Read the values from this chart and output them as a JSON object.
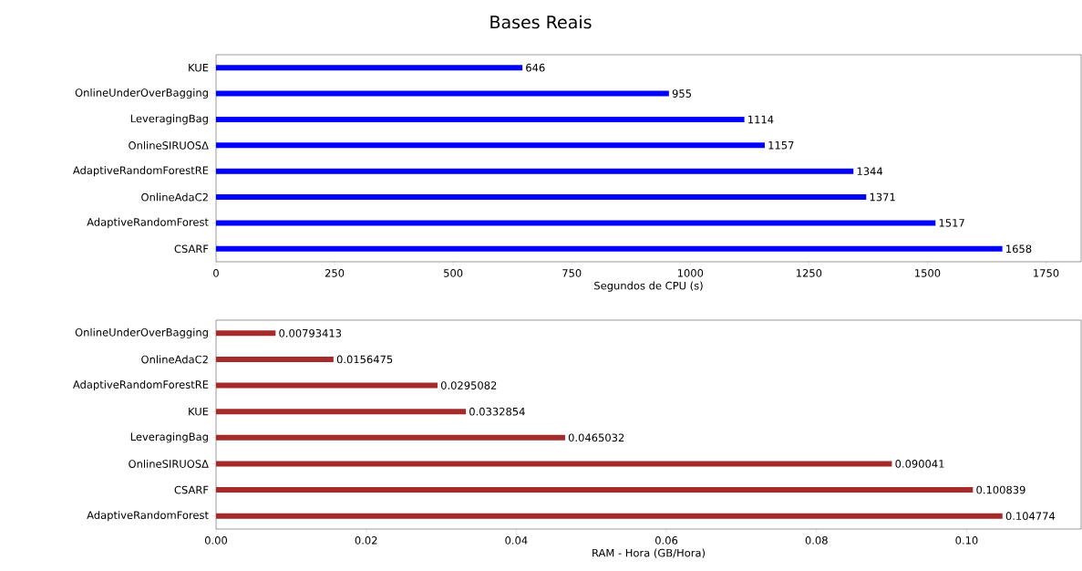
{
  "chart_data": [
    {
      "type": "bar",
      "orientation": "horizontal",
      "title": "Bases Reais",
      "xlabel": "Segundos de CPU (s)",
      "categories": [
        "KUE",
        "OnlineUnderOverBagging",
        "LeveragingBag",
        "OnlineSIRUOSΔ",
        "AdaptiveRandomForestRE",
        "OnlineAdaC2",
        "AdaptiveRandomForest",
        "CSARF"
      ],
      "values": [
        646,
        955,
        1114,
        1157,
        1344,
        1371,
        1517,
        1658
      ],
      "color": "#0000ff",
      "data_labels": true,
      "xlim": [
        0,
        1824
      ],
      "xticks": [
        0,
        250,
        500,
        750,
        1000,
        1250,
        1500,
        1750
      ]
    },
    {
      "type": "bar",
      "orientation": "horizontal",
      "xlabel": "RAM - Hora (GB/Hora)",
      "categories": [
        "OnlineUnderOverBagging",
        "OnlineAdaC2",
        "AdaptiveRandomForestRE",
        "KUE",
        "LeveragingBag",
        "OnlineSIRUOSΔ",
        "CSARF",
        "AdaptiveRandomForest"
      ],
      "values": [
        0.00793413,
        0.0156475,
        0.0295082,
        0.0332854,
        0.0465032,
        0.090041,
        0.100839,
        0.104774
      ],
      "color": "#a52a2a",
      "data_labels": true,
      "xlim": [
        0,
        0.11525
      ],
      "xticks": [
        {
          "value": 0,
          "label": "0.00"
        },
        {
          "value": 0.02,
          "label": "0.02"
        },
        {
          "value": 0.04,
          "label": "0.04"
        },
        {
          "value": 0.06,
          "label": "0.06"
        },
        {
          "value": 0.08,
          "label": "0.08"
        },
        {
          "value": 0.1,
          "label": "0.10"
        }
      ]
    }
  ]
}
